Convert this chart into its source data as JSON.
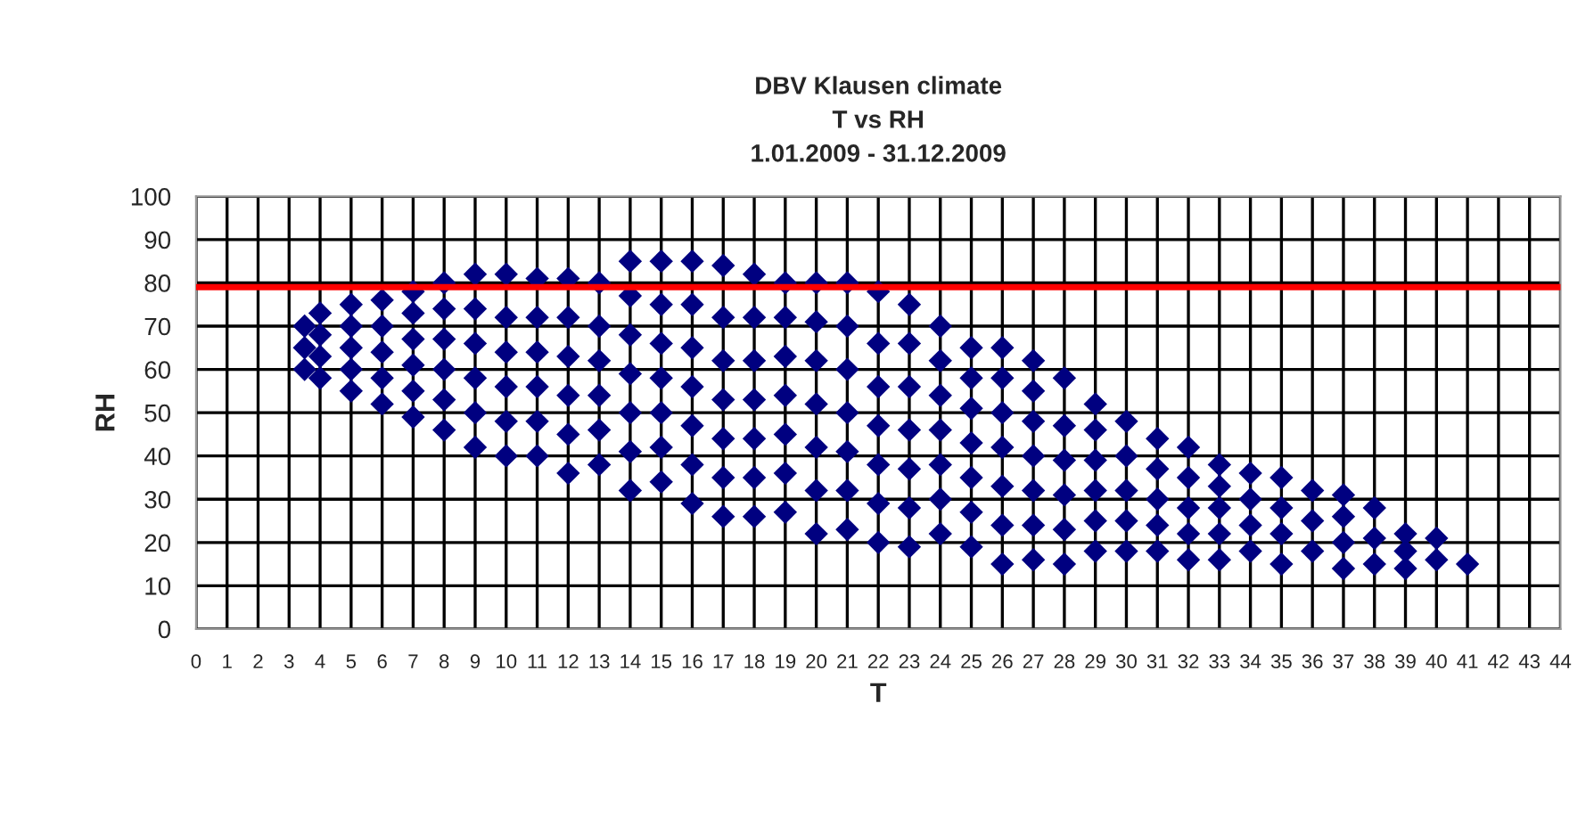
{
  "chart_data": {
    "type": "scatter",
    "title": "DBV Klausen climate\nT vs RH\n1.01.2009 - 31.12.2009",
    "xlabel": "T",
    "ylabel": "RH",
    "xlim": [
      0,
      44
    ],
    "xticks": [
      0,
      1,
      2,
      3,
      4,
      5,
      6,
      7,
      8,
      9,
      10,
      11,
      12,
      13,
      14,
      15,
      16,
      17,
      18,
      19,
      20,
      21,
      22,
      23,
      24,
      25,
      26,
      27,
      28,
      29,
      30,
      31,
      32,
      33,
      34,
      35,
      36,
      37,
      38,
      39,
      40,
      41,
      42,
      43,
      44
    ],
    "ylim": [
      0,
      100
    ],
    "yticks": [
      0,
      10,
      20,
      30,
      40,
      50,
      60,
      70,
      80,
      90,
      100
    ],
    "grid": true,
    "marker": "diamond",
    "legend": false,
    "ref_lines": [
      {
        "axis": "y",
        "value": 79,
        "color": "#ff0000"
      }
    ],
    "series": [
      {
        "color": "#000080",
        "x": [
          3.5,
          3.5,
          3.5,
          4,
          4,
          4,
          4,
          5,
          5,
          5,
          5,
          5,
          6,
          6,
          6,
          6,
          6,
          7,
          7,
          7,
          7,
          7,
          7,
          8,
          8,
          8,
          8,
          8,
          8,
          9,
          9,
          9,
          9,
          9,
          9,
          10,
          10,
          10,
          10,
          10,
          10,
          11,
          11,
          11,
          11,
          11,
          11,
          12,
          12,
          12,
          12,
          12,
          12,
          13,
          13,
          13,
          13,
          13,
          13,
          14,
          14,
          14,
          14,
          14,
          14,
          14,
          15,
          15,
          15,
          15,
          15,
          15,
          15,
          16,
          16,
          16,
          16,
          16,
          16,
          16,
          17,
          17,
          17,
          17,
          17,
          17,
          17,
          18,
          18,
          18,
          18,
          18,
          18,
          18,
          19,
          19,
          19,
          19,
          19,
          19,
          19,
          20,
          20,
          20,
          20,
          20,
          20,
          20,
          21,
          21,
          21,
          21,
          21,
          21,
          21,
          22,
          22,
          22,
          22,
          22,
          22,
          22,
          23,
          23,
          23,
          23,
          23,
          23,
          23,
          24,
          24,
          24,
          24,
          24,
          24,
          24,
          25,
          25,
          25,
          25,
          25,
          25,
          25,
          26,
          26,
          26,
          26,
          26,
          26,
          26,
          27,
          27,
          27,
          27,
          27,
          27,
          27,
          28,
          28,
          28,
          28,
          28,
          28,
          29,
          29,
          29,
          29,
          29,
          29,
          30,
          30,
          30,
          30,
          30,
          31,
          31,
          31,
          31,
          31,
          32,
          32,
          32,
          32,
          32,
          33,
          33,
          33,
          33,
          33,
          34,
          34,
          34,
          34,
          35,
          35,
          35,
          35,
          36,
          36,
          36,
          37,
          37,
          37,
          37,
          38,
          38,
          38,
          39,
          39,
          39,
          40,
          40,
          41
        ],
        "values": [
          60,
          65,
          70,
          58,
          63,
          68,
          73,
          55,
          60,
          65,
          70,
          75,
          52,
          58,
          64,
          70,
          76,
          49,
          55,
          61,
          67,
          73,
          78,
          46,
          53,
          60,
          67,
          74,
          80,
          42,
          50,
          58,
          66,
          74,
          82,
          40,
          48,
          56,
          64,
          72,
          82,
          40,
          48,
          56,
          64,
          72,
          81,
          36,
          45,
          54,
          63,
          72,
          81,
          38,
          46,
          54,
          62,
          70,
          80,
          32,
          41,
          50,
          59,
          68,
          77,
          85,
          34,
          42,
          50,
          58,
          66,
          75,
          85,
          29,
          38,
          47,
          56,
          65,
          75,
          85,
          26,
          35,
          44,
          53,
          62,
          72,
          84,
          26,
          35,
          44,
          53,
          62,
          72,
          82,
          27,
          36,
          45,
          54,
          63,
          72,
          80,
          22,
          32,
          42,
          52,
          62,
          71,
          80,
          23,
          32,
          41,
          50,
          60,
          70,
          80,
          20,
          29,
          38,
          47,
          56,
          66,
          78,
          19,
          28,
          37,
          46,
          56,
          66,
          75,
          22,
          30,
          38,
          46,
          54,
          62,
          70,
          19,
          27,
          35,
          43,
          51,
          58,
          65,
          15,
          24,
          33,
          42,
          50,
          58,
          65,
          16,
          24,
          32,
          40,
          48,
          55,
          62,
          15,
          23,
          31,
          39,
          47,
          58,
          18,
          25,
          32,
          39,
          46,
          52,
          18,
          25,
          32,
          40,
          48,
          18,
          24,
          30,
          37,
          44,
          16,
          22,
          28,
          35,
          42,
          16,
          22,
          28,
          33,
          38,
          18,
          24,
          30,
          36,
          15,
          22,
          28,
          35,
          18,
          25,
          32,
          14,
          20,
          26,
          31,
          15,
          21,
          28,
          14,
          18,
          22,
          16,
          21,
          15
        ]
      }
    ]
  }
}
